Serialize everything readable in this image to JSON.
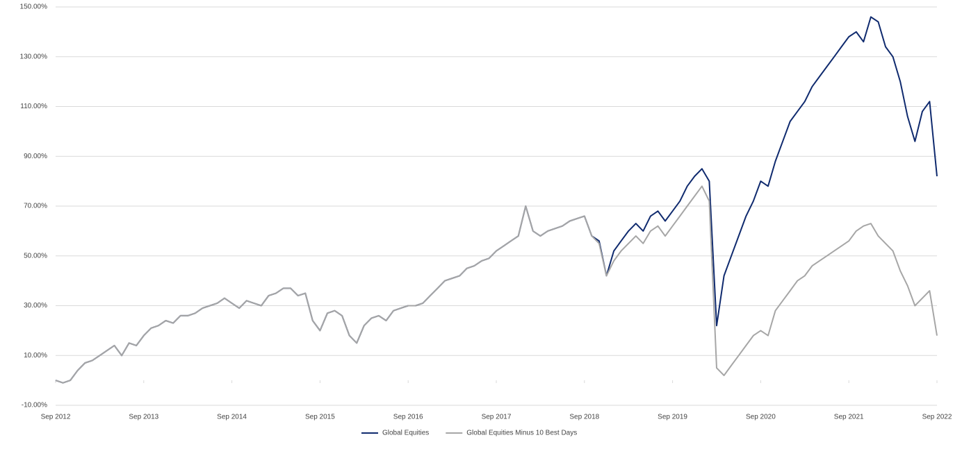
{
  "chart_data": {
    "type": "line",
    "x": [
      "Sep 2012",
      null,
      null,
      null,
      null,
      null,
      null,
      null,
      null,
      null,
      null,
      null,
      "Sep 2013",
      null,
      null,
      null,
      null,
      null,
      null,
      null,
      null,
      null,
      null,
      null,
      "Sep 2014",
      null,
      null,
      null,
      null,
      null,
      null,
      null,
      null,
      null,
      null,
      null,
      "Sep 2015",
      null,
      null,
      null,
      null,
      null,
      null,
      null,
      null,
      null,
      null,
      null,
      "Sep 2016",
      null,
      null,
      null,
      null,
      null,
      null,
      null,
      null,
      null,
      null,
      null,
      "Sep 2017",
      null,
      null,
      null,
      null,
      null,
      null,
      null,
      null,
      null,
      null,
      null,
      "Sep 2018",
      null,
      null,
      null,
      null,
      null,
      null,
      null,
      null,
      null,
      null,
      null,
      "Sep 2019",
      null,
      null,
      null,
      null,
      null,
      null,
      null,
      null,
      null,
      null,
      null,
      "Sep 2020",
      null,
      null,
      null,
      null,
      null,
      null,
      null,
      null,
      null,
      null,
      null,
      "Sep 2021",
      null,
      null,
      null,
      null,
      null,
      null,
      null,
      null,
      null,
      null,
      null,
      "Sep 2022"
    ],
    "series": [
      {
        "name": "Global Equities",
        "color": "#0f2a6e",
        "values": [
          0,
          -1,
          0,
          4,
          7,
          8,
          10,
          12,
          14,
          10,
          15,
          14,
          18,
          21,
          22,
          24,
          23,
          26,
          26,
          27,
          29,
          30,
          31,
          33,
          31,
          29,
          32,
          31,
          30,
          34,
          35,
          37,
          37,
          34,
          35,
          24,
          20,
          27,
          28,
          26,
          18,
          15,
          22,
          25,
          26,
          24,
          28,
          29,
          30,
          30,
          31,
          34,
          37,
          40,
          41,
          42,
          45,
          46,
          48,
          49,
          52,
          54,
          56,
          58,
          70,
          60,
          58,
          60,
          61,
          62,
          64,
          65,
          66,
          58,
          56,
          42,
          52,
          56,
          60,
          63,
          60,
          66,
          68,
          64,
          68,
          72,
          78,
          82,
          85,
          80,
          22,
          42,
          50,
          58,
          66,
          72,
          80,
          78,
          88,
          96,
          104,
          108,
          112,
          118,
          122,
          126,
          130,
          134,
          138,
          140,
          136,
          146,
          144,
          134,
          130,
          120,
          106,
          96,
          108,
          112,
          82
        ]
      },
      {
        "name": "Global Equities Minus 10 Best Days",
        "color": "#a6a6a6",
        "values": [
          0,
          -1,
          0,
          4,
          7,
          8,
          10,
          12,
          14,
          10,
          15,
          14,
          18,
          21,
          22,
          24,
          23,
          26,
          26,
          27,
          29,
          30,
          31,
          33,
          31,
          29,
          32,
          31,
          30,
          34,
          35,
          37,
          37,
          34,
          35,
          24,
          20,
          27,
          28,
          26,
          18,
          15,
          22,
          25,
          26,
          24,
          28,
          29,
          30,
          30,
          31,
          34,
          37,
          40,
          41,
          42,
          45,
          46,
          48,
          49,
          52,
          54,
          56,
          58,
          70,
          60,
          58,
          60,
          61,
          62,
          64,
          65,
          66,
          58,
          55,
          42,
          48,
          52,
          55,
          58,
          55,
          60,
          62,
          58,
          62,
          66,
          70,
          74,
          78,
          72,
          5,
          2,
          6,
          10,
          14,
          18,
          20,
          18,
          28,
          32,
          36,
          40,
          42,
          46,
          48,
          50,
          52,
          54,
          56,
          60,
          62,
          63,
          58,
          55,
          52,
          44,
          38,
          30,
          33,
          36,
          18
        ]
      }
    ],
    "ylim": [
      -10,
      150
    ],
    "yticks": [
      {
        "value": -10,
        "label": "-10.00%"
      },
      {
        "value": 10,
        "label": "10.00%"
      },
      {
        "value": 30,
        "label": "30.00%"
      },
      {
        "value": 50,
        "label": "50.00%"
      },
      {
        "value": 70,
        "label": "70.00%"
      },
      {
        "value": 90,
        "label": "90.00%"
      },
      {
        "value": 110,
        "label": "110.00%"
      },
      {
        "value": 130,
        "label": "130.00%"
      },
      {
        "value": 150,
        "label": "150.00%"
      }
    ],
    "grid": true,
    "legend": "bottom"
  }
}
